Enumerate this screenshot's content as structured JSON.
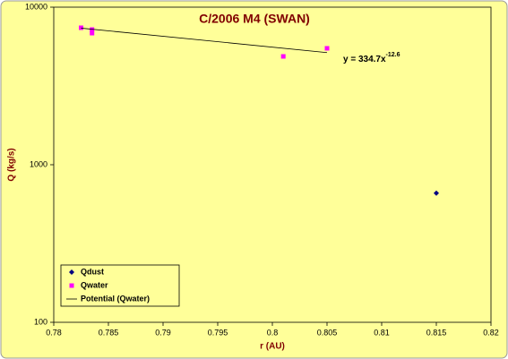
{
  "chart_data": {
    "type": "scatter",
    "title": "C/2006 M4 (SWAN)",
    "x_label": "r (AU)",
    "y_label": "Q (kg/s)",
    "log_y": true,
    "legend": "lower left",
    "xlim": [
      0.78,
      0.82
    ],
    "xticks": [
      0.78,
      0.785,
      0.79,
      0.795,
      0.8,
      0.805,
      0.81,
      0.815,
      0.82
    ],
    "ylim": [
      100,
      10000
    ],
    "yticks": [
      100,
      1000,
      10000
    ],
    "series": [
      {
        "name": "Qdust",
        "color": "#000080",
        "marker": "diamond",
        "x": [
          0.815
        ],
        "values": [
          660
        ]
      },
      {
        "name": "Qwater",
        "color": "#ff00ff",
        "marker": "square",
        "x": [
          0.7825,
          0.7835,
          0.7835,
          0.801,
          0.805
        ],
        "values": [
          7400,
          7210,
          6840,
          4870,
          5480
        ]
      },
      {
        "name": "Potential (Qwater)",
        "color": "#000000",
        "marker": "line",
        "x": [
          0.7825,
          0.805
        ],
        "values": [
          7360,
          5150
        ]
      }
    ],
    "annotation": {
      "text": "y = 334.7x",
      "superscript": "-12.6"
    }
  }
}
